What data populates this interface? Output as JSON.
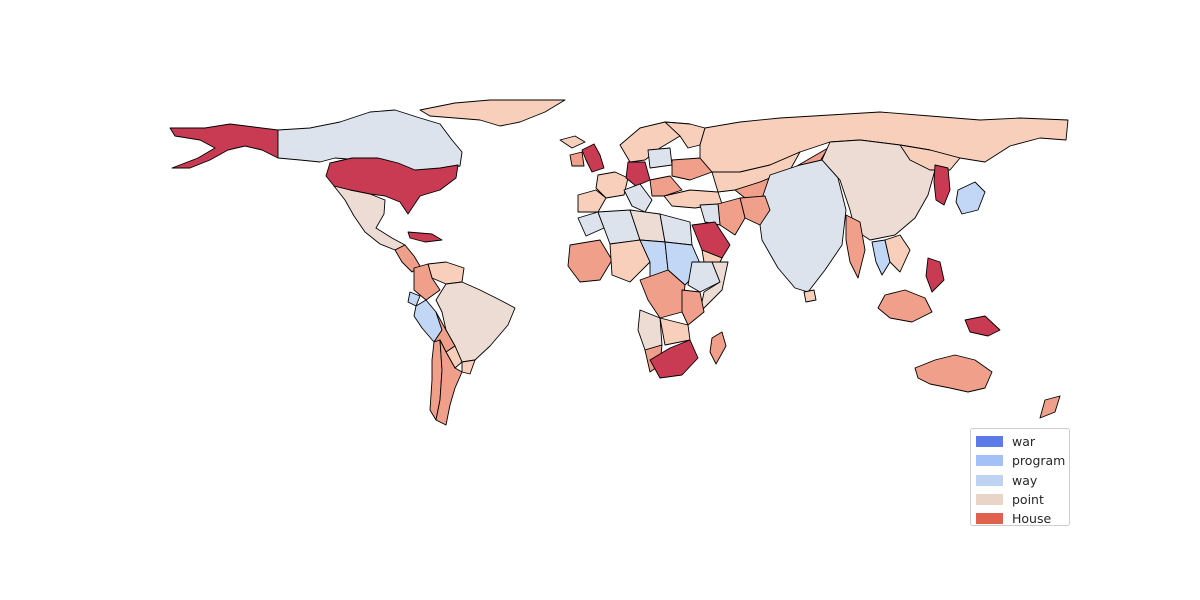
{
  "map": {
    "title": "",
    "legend": {
      "placement": "lower-right",
      "items": [
        {
          "label": "war",
          "color": "#5b7be6"
        },
        {
          "label": "program",
          "color": "#a3c0f7"
        },
        {
          "label": "way",
          "color": "#bed3f4"
        },
        {
          "label": "point",
          "color": "#ead4c8"
        },
        {
          "label": "House",
          "color": "#e0624e"
        }
      ]
    },
    "palette": {
      "ocean": "#ffffff",
      "border": "#000000",
      "darkest_red": "#c93b53",
      "salmon": "#f0a08a",
      "peach": "#f7cfba",
      "pale_beige": "#eddcd4",
      "pale_gray_blue": "#dde3ec",
      "light_blue": "#c2d6f6"
    },
    "regions": [
      {
        "name": "Alaska",
        "color": "#c93b53"
      },
      {
        "name": "Canada",
        "color": "#dde3ec"
      },
      {
        "name": "Greenland",
        "color": "#f7cfba"
      },
      {
        "name": "United States",
        "color": "#c93b53"
      },
      {
        "name": "Mexico",
        "color": "#eddcd4"
      },
      {
        "name": "Central America",
        "color": "#f0a08a"
      },
      {
        "name": "Cuba",
        "color": "#c93b53"
      },
      {
        "name": "Venezuela",
        "color": "#f7cfba"
      },
      {
        "name": "Colombia",
        "color": "#f0a08a"
      },
      {
        "name": "Ecuador",
        "color": "#c2d6f6"
      },
      {
        "name": "Peru",
        "color": "#c2d6f6"
      },
      {
        "name": "Brazil",
        "color": "#eddcd4"
      },
      {
        "name": "Bolivia",
        "color": "#f0a08a"
      },
      {
        "name": "Paraguay",
        "color": "#f7cfba"
      },
      {
        "name": "Argentina",
        "color": "#f0a08a"
      },
      {
        "name": "Chile",
        "color": "#f0a08a"
      },
      {
        "name": "Uruguay",
        "color": "#f7cfba"
      },
      {
        "name": "Iceland",
        "color": "#f7cfba"
      },
      {
        "name": "United Kingdom",
        "color": "#c93b53"
      },
      {
        "name": "Ireland",
        "color": "#f0a08a"
      },
      {
        "name": "Scandinavia",
        "color": "#f7cfba"
      },
      {
        "name": "Finland",
        "color": "#f7cfba"
      },
      {
        "name": "France",
        "color": "#f7cfba"
      },
      {
        "name": "Spain",
        "color": "#f7cfba"
      },
      {
        "name": "Germany",
        "color": "#c93b53"
      },
      {
        "name": "Poland",
        "color": "#dde3ec"
      },
      {
        "name": "Italy",
        "color": "#dde3ec"
      },
      {
        "name": "Balkans",
        "color": "#f0a08a"
      },
      {
        "name": "Ukraine",
        "color": "#f0a08a"
      },
      {
        "name": "Turkey",
        "color": "#f7cfba"
      },
      {
        "name": "Russia",
        "color": "#f7cfba"
      },
      {
        "name": "Kazakhstan",
        "color": "#f7cfba"
      },
      {
        "name": "Central Asia",
        "color": "#f0a08a"
      },
      {
        "name": "China",
        "color": "#eddcd4"
      },
      {
        "name": "Mongolia",
        "color": "#f7cfba"
      },
      {
        "name": "Korea",
        "color": "#c93b53"
      },
      {
        "name": "Japan",
        "color": "#c2d6f6"
      },
      {
        "name": "India",
        "color": "#dde3ec"
      },
      {
        "name": "Afghanistan",
        "color": "#f0a08a"
      },
      {
        "name": "Iran",
        "color": "#f0a08a"
      },
      {
        "name": "Iraq",
        "color": "#dde3ec"
      },
      {
        "name": "Saudi Arabia",
        "color": "#c93b53"
      },
      {
        "name": "Yemen",
        "color": "#f7cfba"
      },
      {
        "name": "Myanmar",
        "color": "#f0a08a"
      },
      {
        "name": "Thailand",
        "color": "#c2d6f6"
      },
      {
        "name": "Indochina",
        "color": "#f7cfba"
      },
      {
        "name": "Philippines",
        "color": "#c93b53"
      },
      {
        "name": "Indonesia",
        "color": "#f0a08a"
      },
      {
        "name": "Papua New Guinea",
        "color": "#c93b53"
      },
      {
        "name": "Australia",
        "color": "#f0a08a"
      },
      {
        "name": "New Zealand",
        "color": "#f0a08a"
      },
      {
        "name": "Morocco",
        "color": "#dde3ec"
      },
      {
        "name": "Algeria",
        "color": "#dde3ec"
      },
      {
        "name": "Libya",
        "color": "#eddcd4"
      },
      {
        "name": "Egypt",
        "color": "#dde3ec"
      },
      {
        "name": "West Africa",
        "color": "#f0a08a"
      },
      {
        "name": "Niger",
        "color": "#f7cfba"
      },
      {
        "name": "Chad",
        "color": "#c2d6f6"
      },
      {
        "name": "Sudan",
        "color": "#c2d6f6"
      },
      {
        "name": "Ethiopia",
        "color": "#dde3ec"
      },
      {
        "name": "Somalia",
        "color": "#eddcd4"
      },
      {
        "name": "Congo",
        "color": "#f0a08a"
      },
      {
        "name": "Angola",
        "color": "#eddcd4"
      },
      {
        "name": "Tanzania",
        "color": "#f0a08a"
      },
      {
        "name": "Zambia",
        "color": "#f7cfba"
      },
      {
        "name": "Namibia",
        "color": "#f0a08a"
      },
      {
        "name": "South Africa",
        "color": "#c93b53"
      },
      {
        "name": "Madagascar",
        "color": "#f0a08a"
      },
      {
        "name": "Sri Lanka",
        "color": "#f7cfba"
      }
    ]
  }
}
